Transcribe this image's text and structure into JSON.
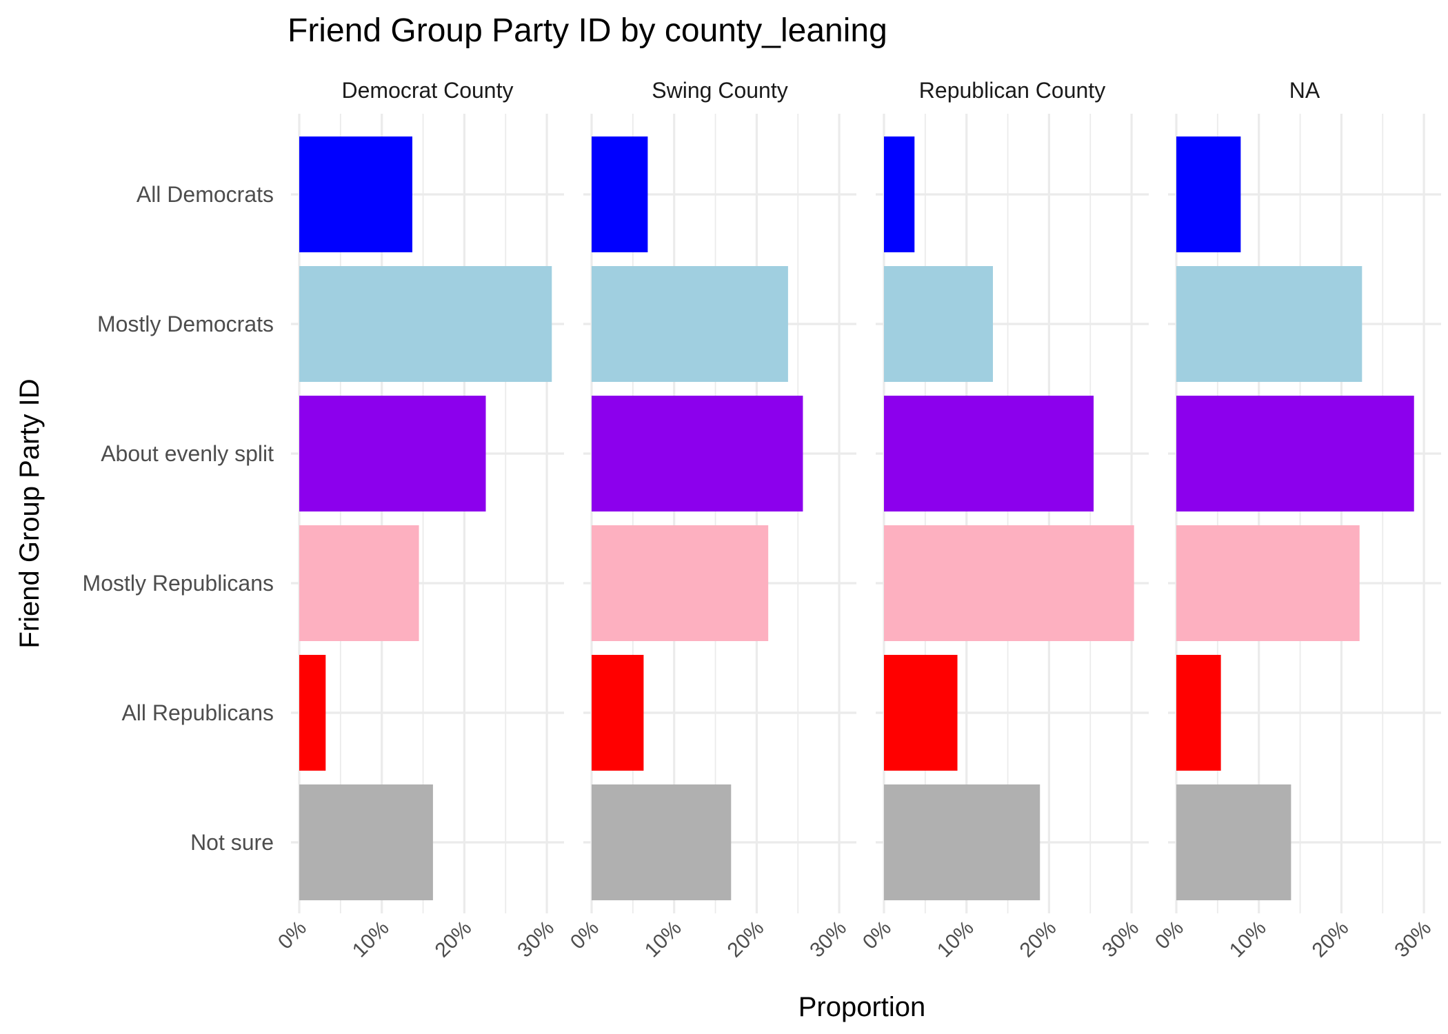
{
  "chart_data": {
    "type": "bar",
    "orientation": "horizontal",
    "faceted": true,
    "title": "Friend Group Party ID by county_leaning",
    "xlabel": "Proportion",
    "ylabel": "Friend Group Party ID",
    "xlim": [
      0,
      0.32
    ],
    "x_ticks": [
      0,
      0.1,
      0.2,
      0.3
    ],
    "x_tick_labels": [
      "0%",
      "10%",
      "20%",
      "30%"
    ],
    "grid": true,
    "legend": "none",
    "categories": [
      "All Democrats",
      "Mostly Democrats",
      "About evenly split",
      "Mostly Republicans",
      "All Republicans",
      "Not sure"
    ],
    "colors": [
      "#0000ff",
      "#a0cfe0",
      "#8c00ed",
      "#fdb0c0",
      "#ff0000",
      "#b0b0b0"
    ],
    "panels": [
      {
        "name": "Democrat County",
        "values": [
          0.137,
          0.306,
          0.226,
          0.145,
          0.032,
          0.162
        ]
      },
      {
        "name": "Swing County",
        "values": [
          0.068,
          0.238,
          0.256,
          0.214,
          0.063,
          0.169
        ]
      },
      {
        "name": "Republican County",
        "values": [
          0.037,
          0.132,
          0.254,
          0.303,
          0.089,
          0.189
        ]
      },
      {
        "name": "NA",
        "values": [
          0.078,
          0.225,
          0.288,
          0.222,
          0.054,
          0.139
        ]
      }
    ]
  }
}
